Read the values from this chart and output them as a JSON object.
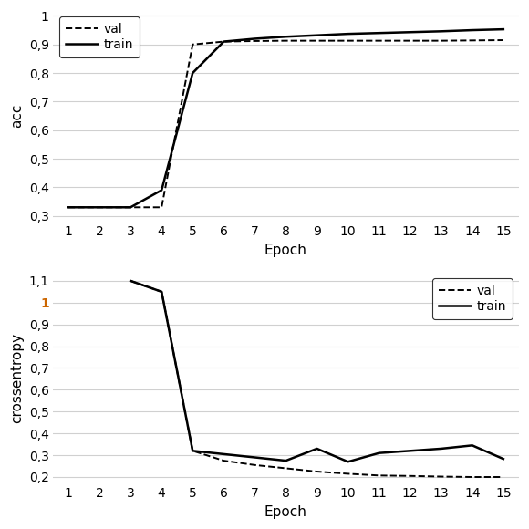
{
  "epochs": [
    1,
    2,
    3,
    4,
    5,
    6,
    7,
    8,
    9,
    10,
    11,
    12,
    13,
    14,
    15
  ],
  "acc_train": [
    0.33,
    0.33,
    0.33,
    0.39,
    0.8,
    0.91,
    0.92,
    0.927,
    0.932,
    0.937,
    0.94,
    0.943,
    0.946,
    0.95,
    0.953
  ],
  "acc_val": [
    0.33,
    0.33,
    0.33,
    0.33,
    0.9,
    0.91,
    0.912,
    0.913,
    0.913,
    0.913,
    0.913,
    0.913,
    0.913,
    0.914,
    0.915
  ],
  "loss_train": [
    null,
    null,
    1.1,
    1.05,
    0.32,
    0.305,
    0.29,
    0.275,
    0.33,
    0.27,
    0.31,
    0.32,
    0.33,
    0.345,
    0.283
  ],
  "loss_val": [
    null,
    null,
    1.1,
    1.05,
    0.32,
    0.275,
    0.255,
    0.24,
    0.225,
    0.215,
    0.207,
    0.205,
    0.202,
    0.2,
    0.2
  ],
  "acc_yticks": [
    0.3,
    0.4,
    0.5,
    0.6,
    0.7,
    0.8,
    0.9,
    1.0
  ],
  "loss_yticks": [
    0.2,
    0.3,
    0.4,
    0.5,
    0.6,
    0.7,
    0.8,
    0.9,
    1.0,
    1.1
  ],
  "line_color": "#000000",
  "bg_color": "#ffffff",
  "grid_color": "#d0d0d0"
}
